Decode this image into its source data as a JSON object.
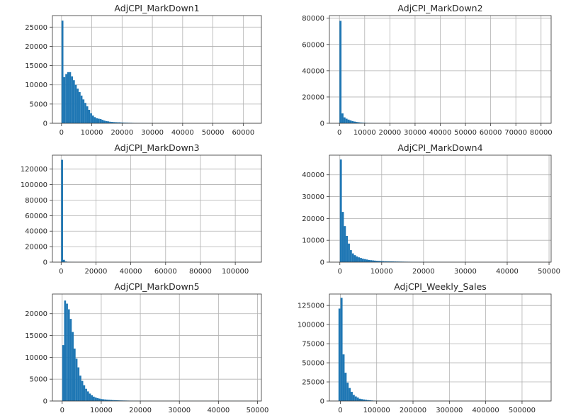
{
  "chart_data": [
    {
      "type": "bar",
      "title": "AdjCPI_MarkDown1",
      "color": "#1f77b4",
      "grid": true,
      "xlim": [
        -3000,
        66000
      ],
      "ylim": [
        0,
        28000
      ],
      "xticks": [
        0,
        10000,
        20000,
        30000,
        40000,
        50000,
        60000
      ],
      "yticks": [
        0,
        5000,
        10000,
        15000,
        20000,
        25000
      ],
      "bin_width": 630,
      "bin_start": 0,
      "values": [
        26700,
        12000,
        12800,
        13300,
        13300,
        12200,
        11200,
        10000,
        9000,
        8100,
        7200,
        6200,
        5300,
        4400,
        3500,
        2600,
        2000,
        1600,
        1300,
        1200,
        1100,
        900,
        700,
        550,
        500,
        400,
        350,
        300,
        280,
        250,
        250,
        200,
        180,
        160,
        150,
        130,
        120,
        100,
        90,
        80,
        70,
        60,
        60,
        50,
        50,
        40,
        40,
        30,
        30,
        20,
        20,
        20,
        20,
        20,
        20,
        20,
        15,
        15,
        15,
        15,
        10,
        10,
        10,
        10,
        10,
        10,
        10,
        10,
        10,
        5,
        5,
        5,
        5,
        5,
        5,
        5,
        5,
        5,
        5,
        5,
        5,
        5,
        5,
        5,
        5,
        5,
        5,
        5,
        5,
        5,
        5,
        5,
        5,
        5,
        5,
        5,
        5,
        5,
        5,
        5
      ]
    },
    {
      "type": "bar",
      "title": "AdjCPI_MarkDown2",
      "color": "#1f77b4",
      "grid": true,
      "xlim": [
        -4000,
        84000
      ],
      "ylim": [
        0,
        82000
      ],
      "xticks": [
        0,
        10000,
        20000,
        30000,
        40000,
        50000,
        60000,
        70000,
        80000
      ],
      "yticks": [
        0,
        20000,
        40000,
        60000,
        80000
      ],
      "bin_width": 800,
      "bin_start": 0,
      "values": [
        78000,
        7500,
        4500,
        3500,
        2800,
        2200,
        1700,
        1300,
        1000,
        800,
        600,
        500,
        400,
        300,
        250,
        200,
        150,
        120,
        100,
        80,
        60,
        50,
        40,
        30,
        20,
        15,
        10,
        10,
        10,
        5,
        5,
        5,
        5,
        5,
        5,
        5,
        5,
        5,
        5,
        5,
        0,
        0,
        0,
        0,
        0,
        0,
        0,
        0,
        0,
        0,
        0,
        0,
        0,
        0,
        0,
        0,
        0,
        0,
        0,
        0,
        0,
        0,
        0,
        0,
        0,
        0,
        0,
        0,
        0,
        0,
        0,
        0,
        0,
        0,
        0,
        0,
        0,
        0,
        0,
        0,
        0,
        0,
        0,
        0,
        0,
        0,
        0,
        0,
        0,
        0,
        0,
        0,
        0,
        0,
        0,
        0,
        0,
        0,
        0,
        0
      ]
    },
    {
      "type": "bar",
      "title": "AdjCPI_MarkDown3",
      "color": "#1f77b4",
      "grid": true,
      "xlim": [
        -5000,
        115000
      ],
      "ylim": [
        0,
        138000
      ],
      "xticks": [
        0,
        20000,
        40000,
        60000,
        80000,
        100000
      ],
      "yticks": [
        0,
        20000,
        40000,
        60000,
        80000,
        100000,
        120000
      ],
      "bin_width": 1100,
      "bin_start": 0,
      "values": [
        132000,
        3000,
        800,
        400,
        300,
        200,
        150,
        100,
        100,
        80,
        60,
        50,
        40,
        40,
        30,
        30,
        30,
        20,
        20,
        20,
        20,
        20,
        20,
        20,
        20,
        20,
        20,
        20,
        20,
        20,
        20,
        20,
        20,
        20,
        20,
        20,
        20,
        20,
        20,
        20,
        20,
        20,
        20,
        20,
        20,
        20,
        20,
        20,
        20,
        20,
        20,
        20,
        20,
        20,
        20,
        20,
        20,
        20,
        20,
        20,
        20,
        20,
        20,
        20,
        20,
        20,
        20,
        20,
        20,
        20,
        20,
        20,
        20,
        20,
        20,
        20,
        20,
        20,
        20,
        20,
        20,
        20,
        20,
        20,
        20,
        20,
        20,
        20,
        20,
        20,
        20,
        20,
        20,
        20,
        20,
        20,
        20,
        20,
        20,
        20
      ]
    },
    {
      "type": "bar",
      "title": "AdjCPI_MarkDown4",
      "color": "#1f77b4",
      "grid": true,
      "xlim": [
        -2500,
        50500
      ],
      "ylim": [
        0,
        49000
      ],
      "xticks": [
        0,
        10000,
        20000,
        30000,
        40000,
        50000
      ],
      "yticks": [
        0,
        10000,
        20000,
        30000,
        40000
      ],
      "bin_width": 480,
      "bin_start": 0,
      "values": [
        47000,
        23000,
        16500,
        12000,
        8500,
        5500,
        4000,
        3200,
        2600,
        2200,
        1900,
        1600,
        1400,
        1200,
        1000,
        900,
        800,
        700,
        600,
        550,
        500,
        450,
        400,
        380,
        360,
        340,
        320,
        300,
        280,
        260,
        240,
        220,
        200,
        190,
        180,
        170,
        160,
        150,
        140,
        130,
        120,
        110,
        100,
        100,
        90,
        90,
        80,
        80,
        70,
        70,
        60,
        60,
        60,
        50,
        50,
        50,
        50,
        40,
        40,
        40,
        40,
        40,
        30,
        30,
        30,
        30,
        30,
        30,
        30,
        30,
        30,
        30,
        30,
        30,
        30,
        30,
        30,
        30,
        30,
        30,
        30,
        30,
        30,
        30,
        30,
        30,
        30,
        30,
        30,
        30,
        30,
        30,
        30,
        30,
        30,
        30,
        30,
        30,
        30,
        30
      ]
    },
    {
      "type": "bar",
      "title": "AdjCPI_MarkDown5",
      "color": "#1f77b4",
      "grid": true,
      "xlim": [
        -2500,
        51000
      ],
      "ylim": [
        0,
        24500
      ],
      "xticks": [
        0,
        10000,
        20000,
        30000,
        40000,
        50000
      ],
      "yticks": [
        0,
        5000,
        10000,
        15000,
        20000
      ],
      "bin_width": 490,
      "bin_start": 0,
      "values": [
        12800,
        23000,
        22300,
        21000,
        18800,
        15800,
        12000,
        9700,
        7700,
        5800,
        4600,
        3600,
        2800,
        2200,
        1700,
        1300,
        1000,
        800,
        650,
        550,
        450,
        400,
        350,
        300,
        270,
        240,
        210,
        190,
        170,
        150,
        130,
        120,
        110,
        100,
        90,
        80,
        70,
        60,
        60,
        50,
        50,
        40,
        40,
        30,
        30,
        30,
        30,
        20,
        20,
        20,
        20,
        20,
        20,
        20,
        20,
        20,
        20,
        20,
        20,
        20,
        20,
        20,
        20,
        20,
        20,
        20,
        20,
        20,
        20,
        20,
        20,
        20,
        20,
        20,
        20,
        20,
        20,
        20,
        20,
        20,
        20,
        20,
        20,
        20,
        20,
        20,
        20,
        20,
        20,
        20,
        20,
        20,
        20,
        20,
        20,
        20,
        20,
        20,
        20,
        20
      ]
    },
    {
      "type": "bar",
      "title": "AdjCPI_Weekly_Sales",
      "color": "#1f77b4",
      "grid": true,
      "xlim": [
        -30000,
        580000
      ],
      "ylim": [
        0,
        140000
      ],
      "xticks": [
        0,
        100000,
        200000,
        300000,
        400000,
        500000
      ],
      "yticks": [
        0,
        25000,
        50000,
        75000,
        100000,
        125000
      ],
      "bin_width": 5600,
      "bin_start": -5000,
      "values": [
        121000,
        135000,
        61000,
        37000,
        24000,
        17000,
        12000,
        8000,
        6000,
        4500,
        3000,
        2500,
        2000,
        1600,
        1200,
        900,
        700,
        500,
        400,
        300,
        250,
        200,
        150,
        120,
        100,
        80,
        70,
        60,
        50,
        40,
        30,
        25,
        20,
        15,
        10,
        10,
        8,
        6,
        5,
        5,
        4,
        3,
        3,
        2,
        2,
        2,
        2,
        1,
        1,
        1,
        1,
        1,
        1,
        1,
        1,
        1,
        1,
        1,
        1,
        1,
        1,
        1,
        1,
        1,
        1,
        1,
        1,
        1,
        1,
        1,
        1,
        1,
        1,
        1,
        1,
        1,
        1,
        1,
        1,
        1,
        1,
        1,
        1,
        1,
        1,
        1,
        1,
        1,
        1,
        1,
        1,
        1,
        1,
        1,
        1,
        1,
        1,
        1,
        1,
        1
      ]
    }
  ]
}
